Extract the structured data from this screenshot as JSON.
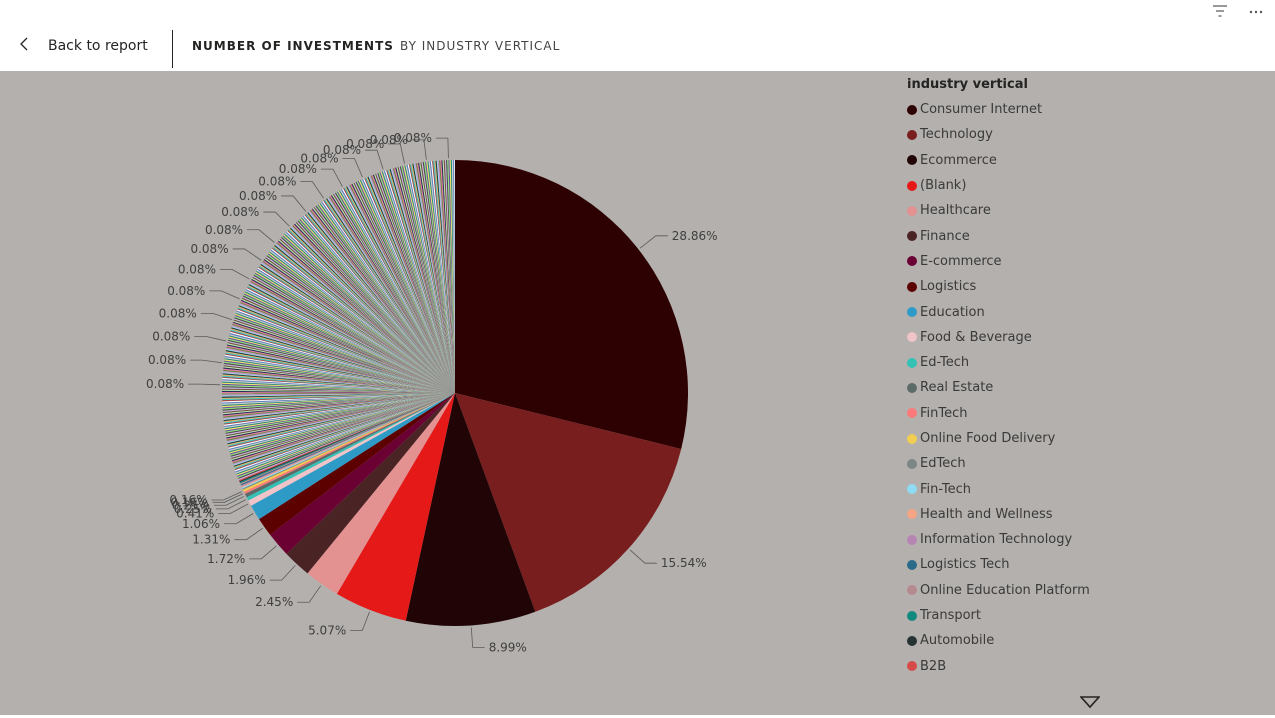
{
  "header": {
    "back_label": "Back to report",
    "title": "NUMBER OF INVESTMENTS",
    "subtitle": "BY INDUSTRY VERTICAL"
  },
  "icons": {
    "back": "chevron-left-icon",
    "filter": "filter-icon",
    "more": "more-options-icon",
    "scroll": "scroll-down-icon"
  },
  "colors": {
    "canvas_bg": "#b3b0ad",
    "header_bg": "#ffffff"
  },
  "chart_data": {
    "type": "pie",
    "legend_title": "industry vertical",
    "legend_position": "right",
    "slices": [
      {
        "label": "Consumer Internet",
        "value": 28.86,
        "color": "#2d0002",
        "data_label": "28.86%"
      },
      {
        "label": "Technology",
        "value": 15.54,
        "color": "#781e1e",
        "data_label": "15.54%"
      },
      {
        "label": "Ecommerce",
        "value": 8.99,
        "color": "#200406",
        "data_label": "8.99%"
      },
      {
        "label": "(Blank)",
        "value": 5.07,
        "color": "#e61919",
        "data_label": "5.07%"
      },
      {
        "label": "Healthcare",
        "value": 2.45,
        "color": "#e39191",
        "data_label": "2.45%"
      },
      {
        "label": "Finance",
        "value": 1.96,
        "color": "#4a2325",
        "data_label": "1.96%"
      },
      {
        "label": "E-commerce",
        "value": 1.72,
        "color": "#6b0033",
        "data_label": "1.72%"
      },
      {
        "label": "Logistics",
        "value": 1.31,
        "color": "#5c0000",
        "data_label": "1.31%"
      },
      {
        "label": "Education",
        "value": 1.06,
        "color": "#2e9bc7",
        "data_label": "1.06%"
      },
      {
        "label": "Food & Beverage",
        "value": 0.41,
        "color": "#f0c4c8",
        "data_label": "0.41%"
      },
      {
        "label": "Ed-Tech",
        "value": 0.25,
        "color": "#33c1b6",
        "data_label": "0.25%"
      },
      {
        "label": "Real Estate",
        "value": 0.25,
        "color": "#5d6b68",
        "data_label": "0.25%"
      },
      {
        "label": "FinTech",
        "value": 0.16,
        "color": "#fa7a7a",
        "data_label": "0.16%"
      },
      {
        "label": "Online Food Delivery",
        "value": 0.16,
        "color": "#f2cd4f",
        "data_label": "0.16%"
      },
      {
        "label": "EdTech",
        "value": 0.08,
        "color": "#7a8784",
        "data_label": "0.08%"
      },
      {
        "label": "Fin-Tech",
        "value": 0.08,
        "color": "#8fdbf5",
        "data_label": "0.08%"
      },
      {
        "label": "Health and Wellness",
        "value": 0.08,
        "color": "#f5a485",
        "data_label": "0.08%"
      },
      {
        "label": "Information Technology",
        "value": 0.08,
        "color": "#b484b3",
        "data_label": "0.08%"
      },
      {
        "label": "Logistics Tech",
        "value": 0.08,
        "color": "#2b6b8a",
        "data_label": "0.08%"
      },
      {
        "label": "Online Education Platform",
        "value": 0.08,
        "color": "#b58a8f",
        "data_label": "0.08%"
      },
      {
        "label": "Transport",
        "value": 0.08,
        "color": "#108a7e",
        "data_label": "0.08%"
      },
      {
        "label": "Automobile",
        "value": 0.08,
        "color": "#263333",
        "data_label": "0.08%"
      },
      {
        "label": "B2B",
        "value": 0.08,
        "color": "#d64a4a",
        "data_label": "0.08%"
      }
    ],
    "tail_data_labels": [
      "0.08%",
      "0.08%",
      "0.08%",
      "0.08%",
      "0.08%",
      "0.08%",
      "0.08%",
      "0.08%",
      "0.08%",
      "0.08%",
      "0.08%",
      "0.08%",
      "0.08%",
      "0.08%",
      "0.08%",
      "0.08%",
      "0.08%"
    ],
    "tail_palette": [
      "#c8b3e6",
      "#4a4a4a",
      "#8de67a",
      "#6b4fa3",
      "#f2e36b",
      "#2a8c7a",
      "#d0d0d0",
      "#5a7fc2",
      "#ffffff",
      "#a34a4a",
      "#3cc7c7",
      "#e3b26b",
      "#1f3d3a",
      "#9cd1e3",
      "#c98fd1",
      "#6b8a3a",
      "#e87a9f",
      "#2c2c5a",
      "#b8e3b0",
      "#70543a"
    ]
  }
}
